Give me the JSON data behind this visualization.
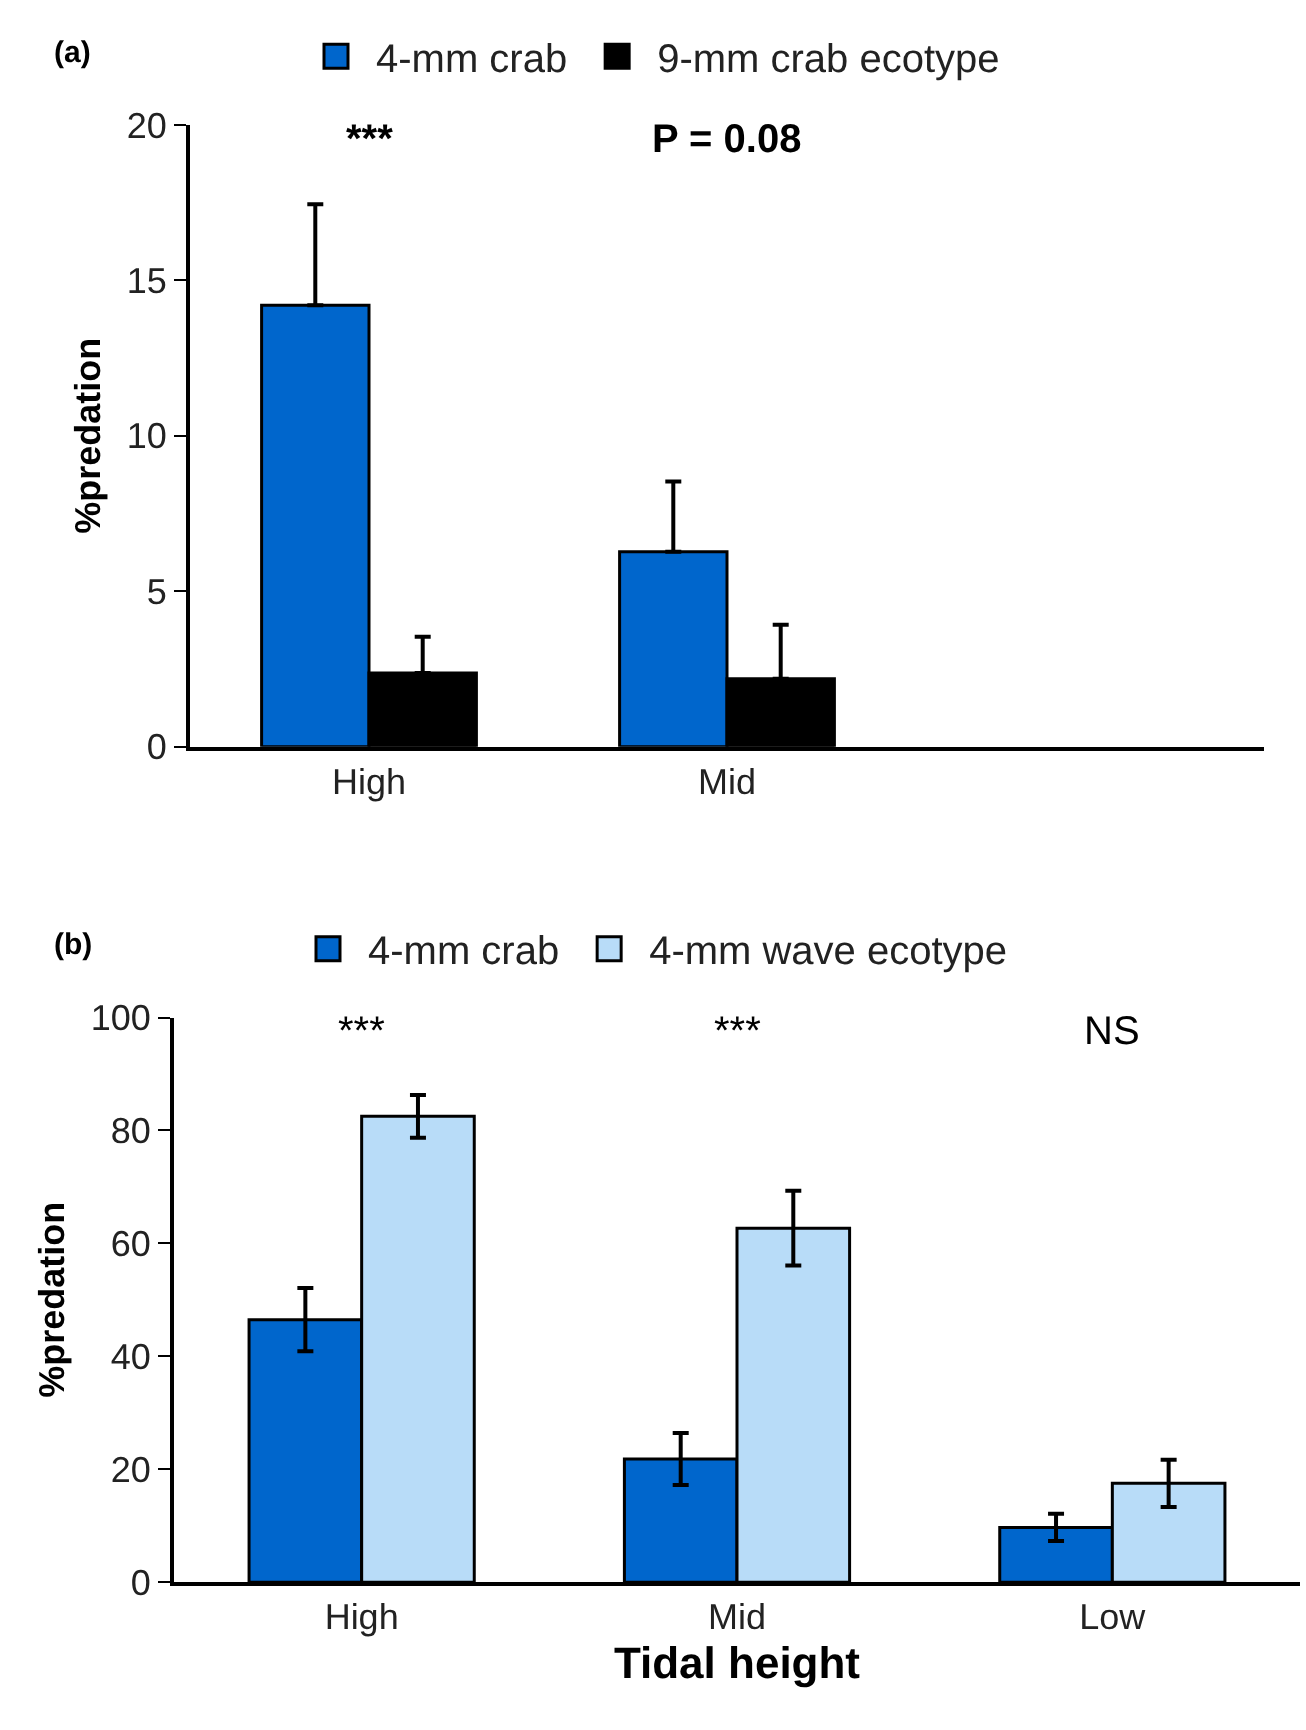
{
  "chart_data": [
    {
      "type": "bar",
      "categories": [
        "High",
        "Mid",
        null
      ],
      "ylabel": "%predation",
      "ylim": [
        0,
        20
      ],
      "yticks": [
        0,
        5,
        10,
        15,
        20
      ],
      "legend": "top",
      "annotations": [
        "(a)",
        "***",
        "P = 0.08"
      ],
      "series": [
        {
          "name": "4-mm crab",
          "color": "#0066cc",
          "values": [
            14.2,
            6.27,
            null
          ],
          "errors": [
            [
              14.2,
              17.45
            ],
            [
              6.27,
              8.53
            ],
            null
          ]
        },
        {
          "name": "9-mm crab ecotype",
          "color": "#000000",
          "values": [
            2.37,
            2.19,
            null
          ],
          "errors": [
            [
              2.37,
              3.54
            ],
            [
              2.19,
              3.92
            ],
            null
          ]
        }
      ]
    },
    {
      "type": "bar",
      "categories": [
        "High",
        "Mid",
        "Low"
      ],
      "xlabel": "Tidal height",
      "ylabel": "%predation",
      "ylim": [
        0,
        100
      ],
      "yticks": [
        0,
        20,
        40,
        60,
        80,
        100
      ],
      "legend": "top",
      "annotations": [
        "(b)",
        "***",
        "***",
        "NS"
      ],
      "series": [
        {
          "name": "4-mm crab",
          "color": "#0066cc",
          "values": [
            46.5,
            21.8,
            9.7
          ],
          "errors": [
            5.6,
            4.6,
            2.4
          ]
        },
        {
          "name": "4-mm wave ecotype",
          "color": "#b8dcf8",
          "values": [
            82.5,
            62.7,
            17.5
          ],
          "errors": [
            3.8,
            6.6,
            4.2
          ]
        }
      ]
    }
  ]
}
